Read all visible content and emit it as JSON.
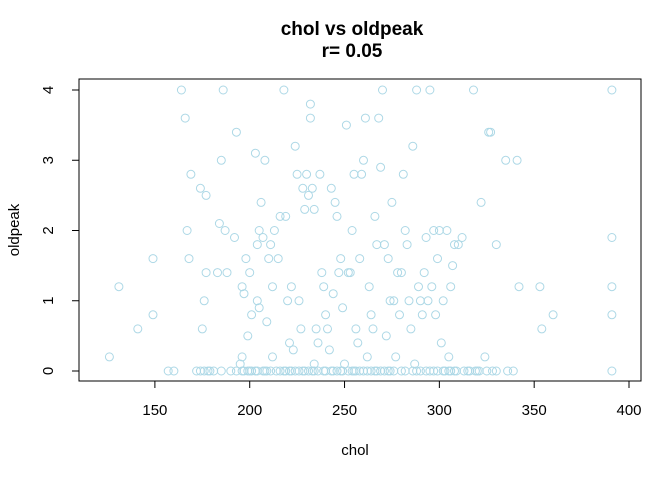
{
  "chart_data": {
    "type": "scatter",
    "title": "chol vs oldpeak",
    "subtitle": "r= 0.05",
    "xlabel": "chol",
    "ylabel": "oldpeak",
    "xlim": [
      120,
      400
    ],
    "ylim": [
      0,
      4
    ],
    "xticks": [
      150,
      200,
      250,
      300,
      350,
      400
    ],
    "yticks": [
      0,
      1,
      2,
      3,
      4
    ],
    "grid": false,
    "legend": "none",
    "marker_color": "#ADD8E6",
    "series": [
      {
        "points": [
          [
            126,
            0.2
          ],
          [
            131,
            1.2
          ],
          [
            141,
            0.6
          ],
          [
            149,
            1.6
          ],
          [
            149,
            0.8
          ],
          [
            157,
            0
          ],
          [
            160,
            0
          ],
          [
            164,
            4
          ],
          [
            166,
            3.6
          ],
          [
            167,
            2
          ],
          [
            168,
            1.6
          ],
          [
            169,
            2.8
          ],
          [
            172,
            0
          ],
          [
            174,
            2.6
          ],
          [
            175,
            0.6
          ],
          [
            176,
            1
          ],
          [
            177,
            2.5
          ],
          [
            177,
            1.4
          ],
          [
            178,
            0
          ],
          [
            179,
            0
          ],
          [
            181,
            0
          ],
          [
            183,
            1.4
          ],
          [
            184,
            2.1
          ],
          [
            185,
            3
          ],
          [
            186,
            4
          ],
          [
            187,
            2
          ],
          [
            188,
            1.4
          ],
          [
            190,
            0
          ],
          [
            192,
            1.9
          ],
          [
            193,
            3.4
          ],
          [
            195,
            0.1
          ],
          [
            196,
            1.2
          ],
          [
            196,
            0.2
          ],
          [
            197,
            1.1
          ],
          [
            197,
            0
          ],
          [
            198,
            1.6
          ],
          [
            199,
            0.5
          ],
          [
            200,
            1.4
          ],
          [
            201,
            0.8
          ],
          [
            201,
            0
          ],
          [
            203,
            3.1
          ],
          [
            204,
            1.8
          ],
          [
            204,
            1
          ],
          [
            205,
            2
          ],
          [
            205,
            0.9
          ],
          [
            206,
            2.4
          ],
          [
            207,
            1.9
          ],
          [
            208,
            3
          ],
          [
            209,
            0.7
          ],
          [
            210,
            1.6
          ],
          [
            211,
            1.8
          ],
          [
            212,
            1.2
          ],
          [
            212,
            0.2
          ],
          [
            213,
            2
          ],
          [
            215,
            1.6
          ],
          [
            216,
            2.2
          ],
          [
            218,
            4
          ],
          [
            219,
            2.2
          ],
          [
            220,
            1
          ],
          [
            221,
            0.4
          ],
          [
            222,
            1.2
          ],
          [
            223,
            0.3
          ],
          [
            224,
            3.2
          ],
          [
            225,
            2.8
          ],
          [
            226,
            1
          ],
          [
            227,
            0.6
          ],
          [
            228,
            2.6
          ],
          [
            229,
            2.3
          ],
          [
            230,
            2.8
          ],
          [
            231,
            2.5
          ],
          [
            232,
            3.8
          ],
          [
            232,
            3.6
          ],
          [
            233,
            2.6
          ],
          [
            234,
            2.3
          ],
          [
            234,
            0.1
          ],
          [
            235,
            0.6
          ],
          [
            236,
            0.4
          ],
          [
            237,
            2.8
          ],
          [
            238,
            1.4
          ],
          [
            239,
            1.2
          ],
          [
            240,
            0.8
          ],
          [
            241,
            0.6
          ],
          [
            242,
            0.3
          ],
          [
            243,
            2.6
          ],
          [
            244,
            1.1
          ],
          [
            245,
            2.4
          ],
          [
            246,
            2.2
          ],
          [
            247,
            1.4
          ],
          [
            248,
            1.6
          ],
          [
            249,
            0.9
          ],
          [
            250,
            0.1
          ],
          [
            251,
            3.5
          ],
          [
            252,
            1.4
          ],
          [
            253,
            1.4
          ],
          [
            254,
            2
          ],
          [
            255,
            2.8
          ],
          [
            256,
            0.6
          ],
          [
            257,
            0.4
          ],
          [
            258,
            1.6
          ],
          [
            259,
            2.8
          ],
          [
            260,
            3
          ],
          [
            261,
            3.6
          ],
          [
            262,
            0.2
          ],
          [
            263,
            1.2
          ],
          [
            264,
            0.8
          ],
          [
            265,
            0.6
          ],
          [
            266,
            2.2
          ],
          [
            267,
            1.8
          ],
          [
            268,
            3.6
          ],
          [
            269,
            2.9
          ],
          [
            270,
            4
          ],
          [
            271,
            1.8
          ],
          [
            272,
            0.5
          ],
          [
            273,
            1.6
          ],
          [
            274,
            1
          ],
          [
            275,
            2.4
          ],
          [
            276,
            1
          ],
          [
            277,
            0.2
          ],
          [
            278,
            1.4
          ],
          [
            279,
            0.8
          ],
          [
            280,
            1.4
          ],
          [
            281,
            2.8
          ],
          [
            282,
            2
          ],
          [
            283,
            1.8
          ],
          [
            284,
            1
          ],
          [
            285,
            0.6
          ],
          [
            286,
            3.2
          ],
          [
            287,
            0.1
          ],
          [
            288,
            4
          ],
          [
            289,
            1.2
          ],
          [
            290,
            1
          ],
          [
            291,
            0.8
          ],
          [
            292,
            1.4
          ],
          [
            293,
            1.9
          ],
          [
            294,
            1
          ],
          [
            295,
            4
          ],
          [
            296,
            1.2
          ],
          [
            297,
            2
          ],
          [
            298,
            0.8
          ],
          [
            299,
            1.6
          ],
          [
            300,
            2
          ],
          [
            301,
            0.4
          ],
          [
            302,
            1
          ],
          [
            304,
            2
          ],
          [
            305,
            0.2
          ],
          [
            306,
            1.2
          ],
          [
            307,
            1.5
          ],
          [
            308,
            1.8
          ],
          [
            310,
            1.8
          ],
          [
            312,
            1.9
          ],
          [
            313,
            0
          ],
          [
            315,
            0
          ],
          [
            318,
            4
          ],
          [
            320,
            0
          ],
          [
            322,
            2.4
          ],
          [
            324,
            0.2
          ],
          [
            326,
            3.4
          ],
          [
            327,
            3.4
          ],
          [
            328,
            0
          ],
          [
            330,
            1.8
          ],
          [
            335,
            3
          ],
          [
            336,
            0
          ],
          [
            341,
            3
          ],
          [
            342,
            1.2
          ],
          [
            353,
            1.2
          ],
          [
            354,
            0.6
          ],
          [
            360,
            0.8
          ],
          [
            391,
            4
          ],
          [
            391,
            1.9
          ],
          [
            391,
            1.2
          ],
          [
            391,
            0.8
          ],
          [
            391,
            0
          ],
          [
            174,
            0
          ],
          [
            176,
            0
          ],
          [
            185,
            0
          ],
          [
            193,
            0
          ],
          [
            196,
            0
          ],
          [
            199,
            0
          ],
          [
            200,
            0
          ],
          [
            203,
            0
          ],
          [
            204,
            0
          ],
          [
            207,
            0
          ],
          [
            208,
            0
          ],
          [
            209,
            0
          ],
          [
            211,
            0
          ],
          [
            214,
            0
          ],
          [
            216,
            0
          ],
          [
            218,
            0
          ],
          [
            219,
            0
          ],
          [
            221,
            0
          ],
          [
            222,
            0
          ],
          [
            224,
            0
          ],
          [
            226,
            0
          ],
          [
            228,
            0
          ],
          [
            229,
            0
          ],
          [
            231,
            0
          ],
          [
            233,
            0
          ],
          [
            234,
            0
          ],
          [
            236,
            0
          ],
          [
            239,
            0
          ],
          [
            240,
            0
          ],
          [
            243,
            0
          ],
          [
            244,
            0
          ],
          [
            246,
            0
          ],
          [
            248,
            0
          ],
          [
            249,
            0
          ],
          [
            252,
            0
          ],
          [
            254,
            0
          ],
          [
            255,
            0
          ],
          [
            256,
            0
          ],
          [
            258,
            0
          ],
          [
            260,
            0
          ],
          [
            262,
            0
          ],
          [
            264,
            0
          ],
          [
            266,
            0
          ],
          [
            267,
            0
          ],
          [
            269,
            0
          ],
          [
            271,
            0
          ],
          [
            273,
            0
          ],
          [
            274,
            0
          ],
          [
            276,
            0
          ],
          [
            280,
            0
          ],
          [
            282,
            0
          ],
          [
            286,
            0
          ],
          [
            288,
            0
          ],
          [
            290,
            0
          ],
          [
            293,
            0
          ],
          [
            295,
            0
          ],
          [
            297,
            0
          ],
          [
            299,
            0
          ],
          [
            302,
            0
          ],
          [
            303,
            0
          ],
          [
            305,
            0
          ],
          [
            306,
            0
          ],
          [
            308,
            0
          ],
          [
            309,
            0
          ],
          [
            316,
            0
          ],
          [
            319,
            0
          ],
          [
            321,
            0
          ],
          [
            325,
            0
          ],
          [
            330,
            0
          ],
          [
            339,
            0
          ]
        ]
      }
    ]
  }
}
